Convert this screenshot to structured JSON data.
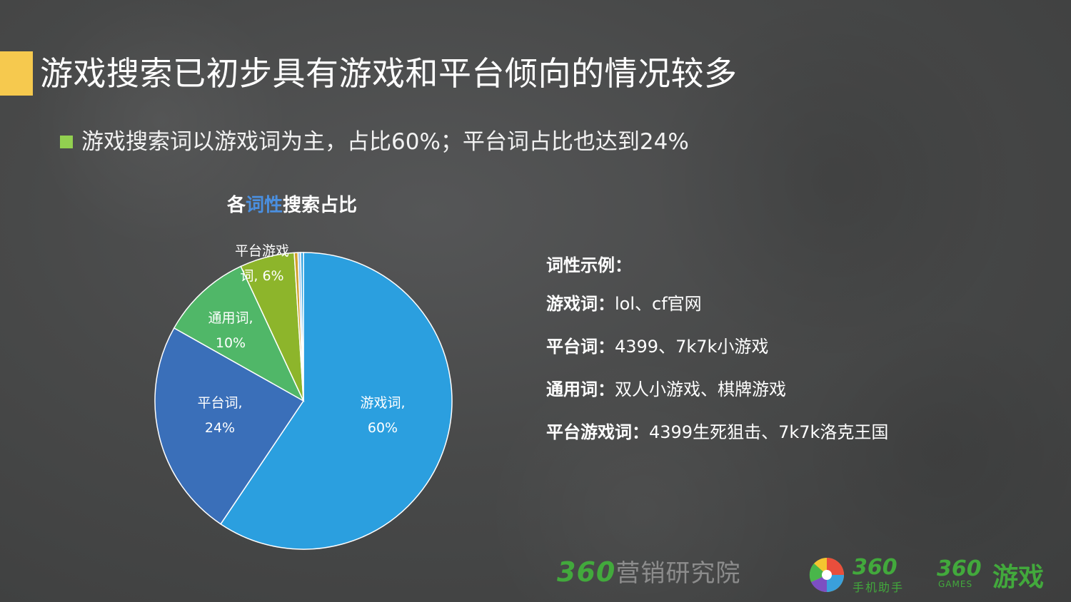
{
  "slide": {
    "title": "游戏搜索已初步具有游戏和平台倾向的情况较多",
    "subtitle": "游戏搜索词以游戏词为主，占比60%；平台词占比也达到24%"
  },
  "chart_data": {
    "type": "pie",
    "title_parts": [
      "各",
      "词性",
      "搜索占比"
    ],
    "slices": [
      {
        "label_line1": "游戏词,",
        "label_line2": "60%",
        "value": 60,
        "color": "#2b9fdf"
      },
      {
        "label_line1": "平台词,",
        "label_line2": "24%",
        "value": 24,
        "color": "#3a6fb9"
      },
      {
        "label_line1": "通用词,",
        "label_line2": "10%",
        "value": 10,
        "color": "#50b768"
      },
      {
        "label_line1": "平台游戏",
        "label_line2": "词, 6%",
        "value": 6,
        "color": "#8db52b"
      },
      {
        "label_line1": "",
        "label_line2": "",
        "value": 0.4,
        "color": "#d1a02c"
      },
      {
        "label_line1": "",
        "label_line2": "",
        "value": 0.3,
        "color": "#9cc3e8"
      },
      {
        "label_line1": "",
        "label_line2": "",
        "value": 0.3,
        "color": "#2b9fdf"
      }
    ]
  },
  "examples": {
    "heading": "词性示例：",
    "rows": [
      {
        "term": "游戏词：",
        "text": "lol、cf官网"
      },
      {
        "term": "平台词：",
        "text": "4399、7k7k小游戏"
      },
      {
        "term": "通用词：",
        "text": "双人小游戏、棋牌游戏"
      },
      {
        "term": "平台游戏词：",
        "text": "4399生死狙击、7k7k洛克王国"
      }
    ]
  },
  "footer": {
    "logo1_num": "360",
    "logo1_text": "营销研究院",
    "logo2_num": "360",
    "logo2_text": "手机助手",
    "logo3_num": "360",
    "logo3_sub": "GAMES",
    "logo3_text": "游戏"
  },
  "colors": {
    "accent_bar": "#f6c94e",
    "bullet": "#92d050",
    "brand_green": "#42a93c",
    "title_highlight": "#4a8fe0"
  }
}
